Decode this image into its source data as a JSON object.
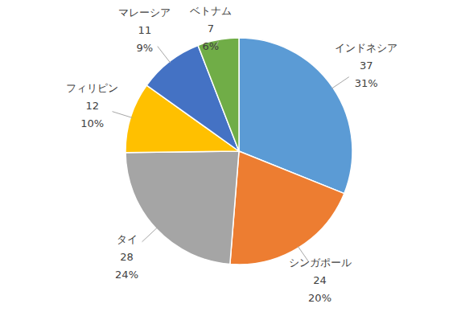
{
  "chart_data": {
    "type": "pie",
    "categories": [
      "インドネシア",
      "シンガポール",
      "タイ",
      "フィリピン",
      "マレーシア",
      "ベトナム"
    ],
    "values": [
      37,
      24,
      28,
      12,
      11,
      7
    ],
    "percents": [
      {
        "value": 31,
        "label": "31%"
      },
      {
        "value": 20,
        "label": "20%"
      },
      {
        "value": 24,
        "label": "24%"
      },
      {
        "value": 10,
        "label": "10%"
      },
      {
        "value": 9,
        "label": "9%"
      },
      {
        "value": 6,
        "label": "6%"
      }
    ],
    "colors": [
      "#5b9bd5",
      "#ed7d31",
      "#a5a5a5",
      "#ffc000",
      "#4472c4",
      "#70ad47"
    ],
    "data_labels": true
  }
}
